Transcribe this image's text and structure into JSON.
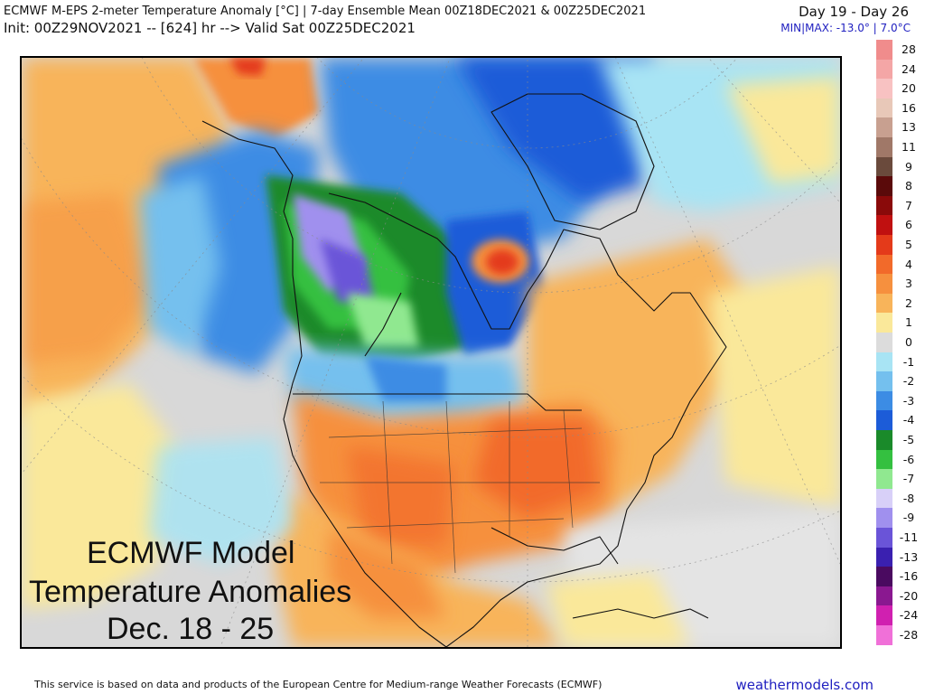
{
  "header": {
    "title_line1": "ECMWF M-EPS 2-meter Temperature Anomaly [°C] | 7-day Ensemble Mean 00Z18DEC2021 & 00Z25DEC2021",
    "title_line2": "Init: 00Z29NOV2021 -- [624] hr --> Valid Sat 00Z25DEC2021",
    "day_range": "Day 19 - Day 26",
    "minmax": "MIN|MAX: -13.0° | 7.0°C"
  },
  "overlay": {
    "line1": "ECMWF Model",
    "line2": "Temperature Anomalies",
    "line3": "Dec. 18 - 25"
  },
  "legend": {
    "items": [
      {
        "label": "28",
        "color": "#f08c8c"
      },
      {
        "label": "24",
        "color": "#f4a6a6"
      },
      {
        "label": "20",
        "color": "#f8c2c2"
      },
      {
        "label": "16",
        "color": "#e8c8b8"
      },
      {
        "label": "13",
        "color": "#c8a090"
      },
      {
        "label": "11",
        "color": "#a07868"
      },
      {
        "label": "9",
        "color": "#6a4a3c"
      },
      {
        "label": "8",
        "color": "#5a0a0a"
      },
      {
        "label": "7",
        "color": "#8a0a0a"
      },
      {
        "label": "6",
        "color": "#c01010"
      },
      {
        "label": "5",
        "color": "#e43a1a"
      },
      {
        "label": "4",
        "color": "#f26a2a"
      },
      {
        "label": "3",
        "color": "#f6903e"
      },
      {
        "label": "2",
        "color": "#f8b45a"
      },
      {
        "label": "1",
        "color": "#fae89a"
      },
      {
        "label": "0",
        "color": "#dcdcdc"
      },
      {
        "label": "-1",
        "color": "#a8e4f4"
      },
      {
        "label": "-2",
        "color": "#74c0ee"
      },
      {
        "label": "-3",
        "color": "#3c8ce4"
      },
      {
        "label": "-4",
        "color": "#1c5cd8"
      },
      {
        "label": "-5",
        "color": "#1a8a2a"
      },
      {
        "label": "-6",
        "color": "#34c040"
      },
      {
        "label": "-7",
        "color": "#90e890"
      },
      {
        "label": "-8",
        "color": "#d8d0f8"
      },
      {
        "label": "-9",
        "color": "#a090ee"
      },
      {
        "label": "-11",
        "color": "#6a54d8"
      },
      {
        "label": "-13",
        "color": "#3a20b0"
      },
      {
        "label": "-16",
        "color": "#4a0a60"
      },
      {
        "label": "-20",
        "color": "#8a1890"
      },
      {
        "label": "-24",
        "color": "#d020b0"
      },
      {
        "label": "-28",
        "color": "#f070d8"
      }
    ]
  },
  "footer": {
    "note": "This service is based on data and products of the European Centre for Medium-range Weather Forecasts (ECMWF)",
    "brand": "weathermodels.com"
  }
}
